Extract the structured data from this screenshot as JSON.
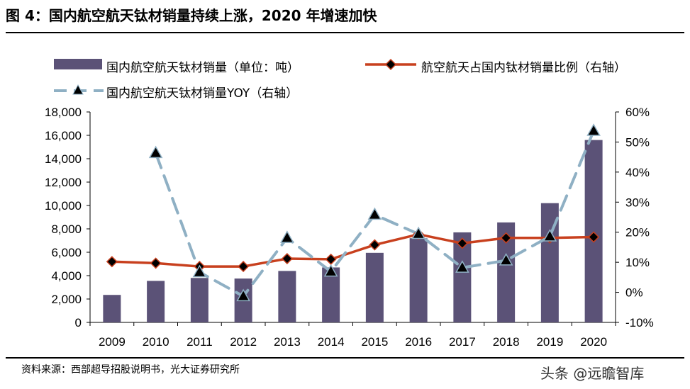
{
  "title": "图 4：国内航空航天钛材销量持续上涨，2020 年增速加快",
  "source": "资料来源：西部超导招股说明书，光大证券研究所",
  "watermark": "头条 @远瞻智库",
  "colors": {
    "bar": "#5b5277",
    "ratio_line": "#c8401e",
    "ratio_marker": "#000000",
    "yoy_line": "#8fb0c4",
    "yoy_marker": "#000000"
  },
  "chart_data": {
    "type": "bar",
    "categories": [
      "2009",
      "2010",
      "2011",
      "2012",
      "2013",
      "2014",
      "2015",
      "2016",
      "2017",
      "2018",
      "2019",
      "2020"
    ],
    "series": [
      {
        "name": "国内航空航天钛材销量（单位：吨）",
        "axis": "left",
        "type": "bar",
        "values": [
          2350,
          3550,
          3800,
          3750,
          4400,
          4700,
          5950,
          7200,
          7700,
          8550,
          10200,
          15600
        ]
      },
      {
        "name": "航空航天占国内钛材销量比例（右轴）",
        "axis": "right",
        "type": "line",
        "values": [
          10.2,
          9.7,
          8.6,
          8.6,
          11.2,
          11.0,
          15.8,
          19.3,
          16.3,
          18.1,
          18.1,
          18.4
        ]
      },
      {
        "name": "国内航空航天钛材销量YOY（右轴）",
        "axis": "right",
        "type": "line-dashed",
        "values": [
          null,
          46.3,
          6.7,
          -1.3,
          18.1,
          6.9,
          25.8,
          19.4,
          8.2,
          10.6,
          18.6,
          53.7
        ]
      }
    ],
    "y_left": {
      "min": 0,
      "max": 18000,
      "step": 2000,
      "ticks": [
        "0",
        "2,000",
        "4,000",
        "6,000",
        "8,000",
        "10,000",
        "12,000",
        "14,000",
        "16,000",
        "18,000"
      ]
    },
    "y_right": {
      "min": -10,
      "max": 60,
      "step": 10,
      "ticks": [
        "-10%",
        "0%",
        "10%",
        "20%",
        "30%",
        "40%",
        "50%",
        "60%"
      ]
    },
    "grid": false,
    "legend": "top"
  }
}
